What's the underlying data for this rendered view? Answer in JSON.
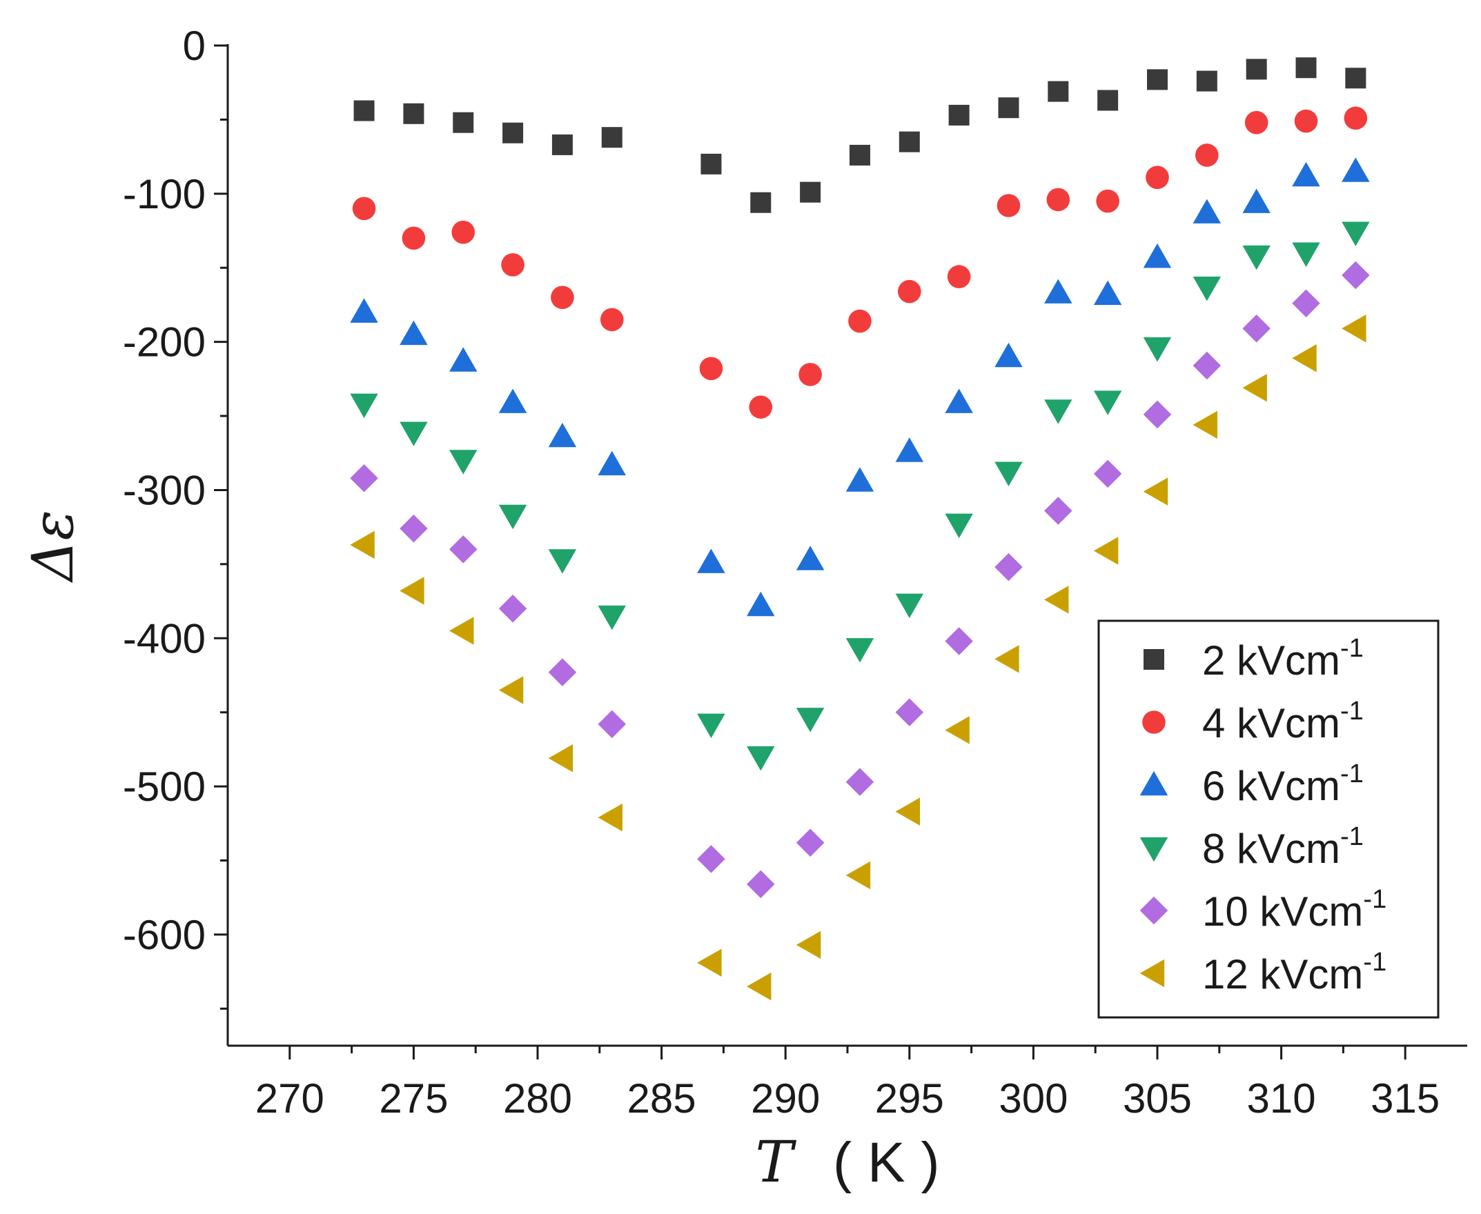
{
  "chart_data": {
    "type": "scatter",
    "title": "",
    "xlabel": {
      "symbol": "T",
      "unit": "( K )"
    },
    "ylabel": "Δε",
    "xlim": [
      267.5,
      317.5
    ],
    "ylim": [
      -675,
      0
    ],
    "xticks": [
      "270",
      "275",
      "280",
      "285",
      "290",
      "295",
      "300",
      "305",
      "310",
      "315"
    ],
    "yticks": [
      "0",
      "-100",
      "-200",
      "-300",
      "-400",
      "-500",
      "-600"
    ],
    "x": [
      273,
      275,
      277,
      279,
      281,
      283,
      287,
      289,
      291,
      293,
      295,
      297,
      299,
      301,
      303,
      305,
      307,
      309,
      311,
      313
    ],
    "series": [
      {
        "name": "2",
        "unit": "kVcm",
        "exp": "-1",
        "marker": "square",
        "color": "#3a3a3a",
        "values": [
          -44,
          -46,
          -52,
          -59,
          -67,
          -62,
          -80,
          -106,
          -99,
          -74,
          -65,
          -47,
          -42,
          -31,
          -37,
          -23,
          -24,
          -16,
          -15,
          -22
        ]
      },
      {
        "name": "4",
        "unit": "kVcm",
        "exp": "-1",
        "marker": "circle",
        "color": "#f23c3c",
        "values": [
          -110,
          -130,
          -126,
          -148,
          -170,
          -185,
          -218,
          -244,
          -222,
          -186,
          -166,
          -156,
          -108,
          -104,
          -105,
          -89,
          -74,
          -52,
          -51,
          -49
        ]
      },
      {
        "name": "6",
        "unit": "kVcm",
        "exp": "-1",
        "marker": "triangle-up",
        "color": "#1e6fd9",
        "values": [
          -180,
          -195,
          -213,
          -241,
          -264,
          -283,
          -349,
          -378,
          -347,
          -294,
          -274,
          -241,
          -210,
          -167,
          -168,
          -143,
          -113,
          -106,
          -88,
          -85
        ]
      },
      {
        "name": "8",
        "unit": "kVcm",
        "exp": "-1",
        "marker": "triangle-down",
        "color": "#1fa36a",
        "values": [
          -242,
          -261,
          -280,
          -317,
          -347,
          -385,
          -458,
          -480,
          -454,
          -407,
          -377,
          -323,
          -288,
          -246,
          -240,
          -204,
          -163,
          -142,
          -140,
          -126
        ]
      },
      {
        "name": "10",
        "unit": "kVcm",
        "exp": "-1",
        "marker": "diamond",
        "color": "#b06ce0",
        "values": [
          -292,
          -326,
          -340,
          -380,
          -423,
          -458,
          -549,
          -566,
          -538,
          -497,
          -450,
          -402,
          -352,
          -314,
          -289,
          -249,
          -216,
          -191,
          -174,
          -155
        ]
      },
      {
        "name": "12",
        "unit": "kVcm",
        "exp": "-1",
        "marker": "triangle-left",
        "color": "#c9a000",
        "values": [
          -337,
          -368,
          -395,
          -435,
          -481,
          -521,
          -619,
          -635,
          -607,
          -560,
          -517,
          -462,
          -414,
          -374,
          -341,
          -301,
          -256,
          -231,
          -211,
          -191
        ]
      }
    ],
    "legend_position": "bottom-right"
  }
}
